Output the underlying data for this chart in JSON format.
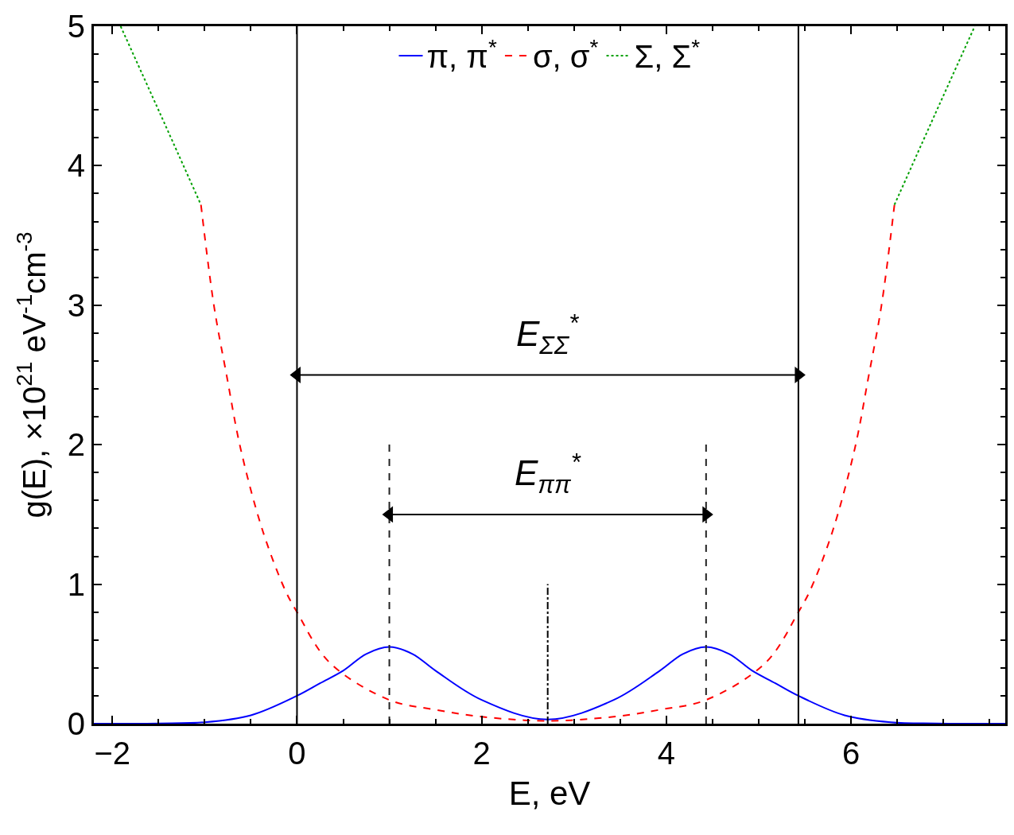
{
  "chart_data": {
    "type": "line",
    "xlabel": "E, eV",
    "ylabel": "g(E), ×10$^{21}$ eV$^{-1}$cm$^{-3}$",
    "xlim": [
      -2.2,
      7.67
    ],
    "ylim": [
      0,
      5
    ],
    "xticks": [
      {
        "value": -2,
        "label": "−2"
      },
      0,
      2,
      4,
      6
    ],
    "yticks": [
      0,
      1,
      2,
      3,
      4,
      5
    ],
    "legend": "top",
    "series": [
      {
        "name": "π, π$^{*}$",
        "color": "#0000ff",
        "line_style": "solid",
        "x": [
          -2.2,
          -1.5,
          -1,
          -0.5,
          0,
          0.25,
          0.5,
          0.75,
          1,
          1.25,
          1.5,
          2,
          2.715,
          3.43,
          3.93,
          4.18,
          4.43,
          4.68,
          4.93,
          5.18,
          5.43,
          5.93,
          6.43,
          6.93,
          7.67
        ],
        "values": [
          0,
          0.002,
          0.01,
          0.06,
          0.2,
          0.29,
          0.38,
          0.5,
          0.55,
          0.5,
          0.38,
          0.17,
          0.03,
          0.17,
          0.38,
          0.5,
          0.55,
          0.5,
          0.38,
          0.29,
          0.2,
          0.06,
          0.01,
          0.002,
          0
        ]
      },
      {
        "name": "σ, σ$^{*}$",
        "color": "#ff0000",
        "line_style": "dashed",
        "x": [
          -1.04,
          -0.9,
          -0.76,
          -0.61,
          -0.37,
          -0.13,
          0,
          0.35,
          1,
          1.5,
          2,
          2.715,
          3.43,
          3.93,
          4.43,
          5.08,
          5.43,
          5.56,
          5.8,
          6.04,
          6.19,
          6.33,
          6.47
        ],
        "values": [
          3.72,
          3.0,
          2.49,
          1.97,
          1.38,
          0.96,
          0.8,
          0.44,
          0.17,
          0.1,
          0.05,
          0.02,
          0.05,
          0.1,
          0.17,
          0.44,
          0.8,
          0.96,
          1.38,
          1.97,
          2.49,
          3.0,
          3.72
        ]
      },
      {
        "name": "Σ, Σ$^{*}$",
        "color": "#00a000",
        "line_style": "dotted",
        "x": [
          -1.91,
          -1.48,
          -1.04,
          2.715,
          6.47,
          6.91,
          7.34
        ],
        "values": [
          5,
          4.37,
          3.72,
          null,
          3.72,
          4.37,
          5
        ]
      },
      {
        "color": "#222222",
        "line_style": "dashed",
        "x": [
          1.0,
          1.0,
          2.715,
          4.43,
          4.43
        ],
        "values": [
          0,
          2.02,
          null,
          0,
          2.02
        ]
      },
      {
        "color": "#000000",
        "line_style": "dashdot",
        "x": [
          2.715,
          2.715
        ],
        "values": [
          0,
          1.0
        ]
      },
      {
        "color": "#000000",
        "line_style": "solid",
        "x": [
          0,
          5.43
        ],
        "values": [
          2.5,
          2.5
        ]
      },
      {
        "color": "#000000",
        "line_style": "solid",
        "x": [
          1.0,
          4.43
        ],
        "values": [
          1.5,
          1.5
        ]
      },
      {
        "type": "scatter",
        "color": "#000000",
        "marker": "triangle",
        "x": [
          0,
          5.43,
          1.0,
          4.43
        ],
        "values": [
          2.5,
          2.5,
          1.5,
          1.5
        ]
      }
    ],
    "ref_lines": [
      {
        "axis": "x",
        "value": 0,
        "color": "#000000",
        "line_style": "solid"
      },
      {
        "axis": "x",
        "value": 5.43,
        "color": "#000000",
        "line_style": "solid"
      }
    ],
    "annotations": [
      "E$_{ΣΣ}$$^{*}$",
      "E$_{ππ}$$^{*}$"
    ]
  }
}
